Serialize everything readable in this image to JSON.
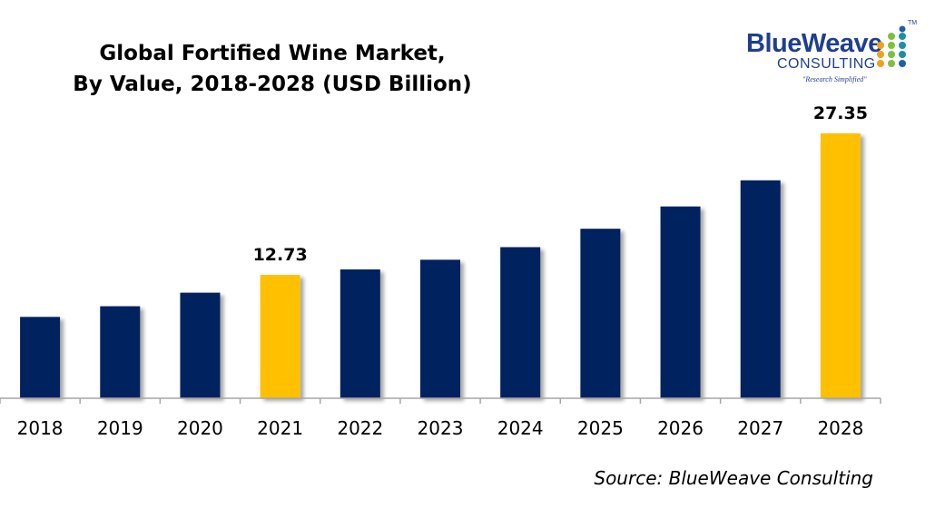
{
  "title_line1": "Global Fortified Wine Market,",
  "title_line2": "By Value, 2018-2028 (USD Billion)",
  "source": "Source: BlueWeave Consulting",
  "logo": {
    "brand": "BlueWeave",
    "sub": "CONSULTING",
    "tagline": "\"Research Simplified\"",
    "tm": "TM"
  },
  "colors": {
    "navy": "#03205e",
    "highlight": "#ffc000",
    "axis": "#a6a6a6"
  },
  "chart_data": {
    "type": "bar",
    "categories": [
      "2018",
      "2019",
      "2020",
      "2021",
      "2022",
      "2023",
      "2024",
      "2025",
      "2026",
      "2027",
      "2028"
    ],
    "values": [
      8.4,
      9.5,
      10.9,
      12.73,
      13.3,
      14.3,
      15.6,
      17.5,
      19.8,
      22.5,
      27.35
    ],
    "highlighted": [
      "2021",
      "2028"
    ],
    "data_labels": {
      "2021": "12.73",
      "2028": "27.35"
    },
    "ylim": [
      0,
      27.35
    ],
    "xlabel": "",
    "ylabel": "",
    "grid": false
  }
}
